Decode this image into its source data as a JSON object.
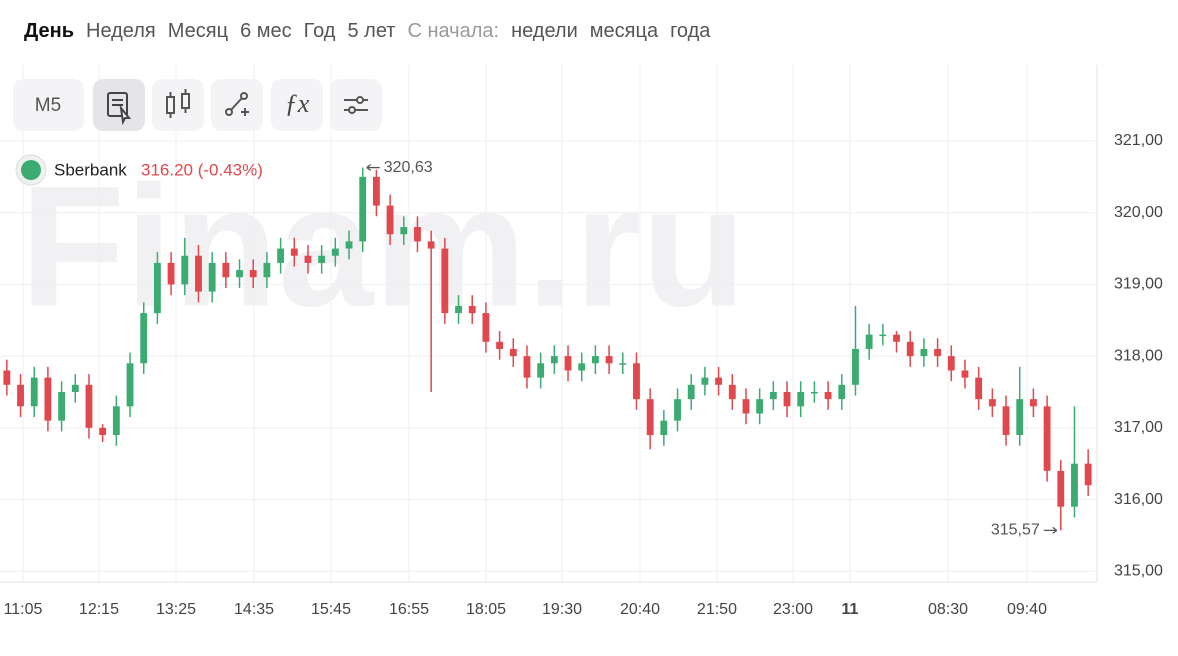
{
  "tabs": {
    "periods": [
      "День",
      "Неделя",
      "Месяц",
      "6 мес",
      "Год",
      "5 лет"
    ],
    "since_label": "С начала:",
    "since": [
      "недели",
      "месяца",
      "года"
    ]
  },
  "toolbar": {
    "interval": "M5"
  },
  "watermark": "Finam.ru",
  "chart_data": {
    "type": "candlestick",
    "ticker": "Sberbank",
    "quote": "316.20 (-0.43%)",
    "up_color": "#3cab72",
    "down_color": "#e0484d",
    "grid": true,
    "xlim": [
      0,
      80
    ],
    "xticks": [
      {
        "value": 1.68,
        "label": "11:05"
      },
      {
        "value": 7.23,
        "label": "12:15"
      },
      {
        "value": 12.86,
        "label": "13:25"
      },
      {
        "value": 18.56,
        "label": "14:35"
      },
      {
        "value": 24.18,
        "label": "15:45"
      },
      {
        "value": 29.88,
        "label": "16:55"
      },
      {
        "value": 35.51,
        "label": "18:05"
      },
      {
        "value": 41.06,
        "label": "19:30"
      },
      {
        "value": 46.76,
        "label": "20:40"
      },
      {
        "value": 52.38,
        "label": "21:50"
      },
      {
        "value": 57.94,
        "label": "23:00"
      },
      {
        "value": 62.1,
        "label": "11"
      },
      {
        "value": 69.26,
        "label": "08:30"
      },
      {
        "value": 75.03,
        "label": "09:40"
      }
    ],
    "ylim": [
      314.85,
      322.06
    ],
    "yticks": [
      {
        "value": 315,
        "label": "315,00"
      },
      {
        "value": 316,
        "label": "316,00"
      },
      {
        "value": 317,
        "label": "317,00"
      },
      {
        "value": 318,
        "label": "318,00"
      },
      {
        "value": 319,
        "label": "319,00"
      },
      {
        "value": 320,
        "label": "320,00"
      },
      {
        "value": 321,
        "label": "321,00"
      }
    ],
    "max_label": {
      "value": 320.63,
      "label": "320,63"
    },
    "min_label": {
      "value": 315.57,
      "label": "315,57"
    },
    "open": [
      317.8,
      317.6,
      317.3,
      317.7,
      317.1,
      317.5,
      317.6,
      317.0,
      316.9,
      317.3,
      317.9,
      318.6,
      319.3,
      319.0,
      319.4,
      318.9,
      319.3,
      319.1,
      319.2,
      319.1,
      319.3,
      319.5,
      319.4,
      319.3,
      319.4,
      319.5,
      319.6,
      320.5,
      320.1,
      319.7,
      319.8,
      319.6,
      319.5,
      318.6,
      318.7,
      318.6,
      318.2,
      318.1,
      318.0,
      317.7,
      317.9,
      318.0,
      317.8,
      317.9,
      318.0,
      317.9,
      317.9,
      317.4,
      316.9,
      317.1,
      317.4,
      317.6,
      317.7,
      317.6,
      317.4,
      317.2,
      317.4,
      317.5,
      317.3,
      317.5,
      317.5,
      317.4,
      317.6,
      318.1,
      318.3,
      318.3,
      318.2,
      318.0,
      318.1,
      318.0,
      317.8,
      317.7,
      317.4,
      317.3,
      316.9,
      317.4,
      317.3,
      316.4,
      315.9,
      316.5
    ],
    "high": [
      317.95,
      317.75,
      317.85,
      317.85,
      317.65,
      317.75,
      317.75,
      317.05,
      317.45,
      318.05,
      318.75,
      319.45,
      319.45,
      319.65,
      319.55,
      319.45,
      319.45,
      319.35,
      319.35,
      319.45,
      319.65,
      319.65,
      319.55,
      319.55,
      319.65,
      319.75,
      320.63,
      320.6,
      320.25,
      319.95,
      319.95,
      319.75,
      319.65,
      318.85,
      318.85,
      318.75,
      318.35,
      318.25,
      318.15,
      318.05,
      318.15,
      318.15,
      318.05,
      318.15,
      318.15,
      318.05,
      318.05,
      317.55,
      317.25,
      317.55,
      317.75,
      317.85,
      317.85,
      317.75,
      317.55,
      317.55,
      317.65,
      317.65,
      317.65,
      317.65,
      317.65,
      317.75,
      318.7,
      318.45,
      318.45,
      318.35,
      318.35,
      318.25,
      318.25,
      318.15,
      317.95,
      317.85,
      317.55,
      317.45,
      317.85,
      317.55,
      317.45,
      316.55,
      317.3,
      316.7
    ],
    "low": [
      317.45,
      317.15,
      317.15,
      316.95,
      316.95,
      317.35,
      316.85,
      316.8,
      316.75,
      317.15,
      317.75,
      318.45,
      318.85,
      318.85,
      318.75,
      318.75,
      318.95,
      318.95,
      318.95,
      318.95,
      319.15,
      319.25,
      319.15,
      319.15,
      319.25,
      319.35,
      319.45,
      319.95,
      319.55,
      319.55,
      319.45,
      317.5,
      318.45,
      318.45,
      318.45,
      318.05,
      317.95,
      317.85,
      317.55,
      317.55,
      317.75,
      317.65,
      317.65,
      317.75,
      317.75,
      317.75,
      317.25,
      316.7,
      316.75,
      316.95,
      317.25,
      317.45,
      317.45,
      317.25,
      317.05,
      317.05,
      317.25,
      317.15,
      317.15,
      317.35,
      317.25,
      317.25,
      317.45,
      317.95,
      318.15,
      318.05,
      317.85,
      317.85,
      317.85,
      317.65,
      317.55,
      317.25,
      317.15,
      316.75,
      316.75,
      317.15,
      316.25,
      315.57,
      315.75,
      316.05
    ],
    "close": [
      317.6,
      317.3,
      317.7,
      317.1,
      317.5,
      317.6,
      317.0,
      316.9,
      317.3,
      317.9,
      318.6,
      319.3,
      319.0,
      319.4,
      318.9,
      319.3,
      319.1,
      319.2,
      319.1,
      319.3,
      319.5,
      319.4,
      319.3,
      319.4,
      319.5,
      319.6,
      320.5,
      320.1,
      319.7,
      319.8,
      319.6,
      319.5,
      318.6,
      318.7,
      318.6,
      318.2,
      318.1,
      318.0,
      317.7,
      317.9,
      318.0,
      317.8,
      317.9,
      318.0,
      317.9,
      317.9,
      317.4,
      316.9,
      317.1,
      317.4,
      317.6,
      317.7,
      317.6,
      317.4,
      317.2,
      317.4,
      317.5,
      317.3,
      317.5,
      317.5,
      317.4,
      317.6,
      318.1,
      318.3,
      318.3,
      318.2,
      318.0,
      318.1,
      318.0,
      317.8,
      317.7,
      317.4,
      317.3,
      316.9,
      317.4,
      317.3,
      316.4,
      315.9,
      316.5,
      316.2
    ]
  }
}
